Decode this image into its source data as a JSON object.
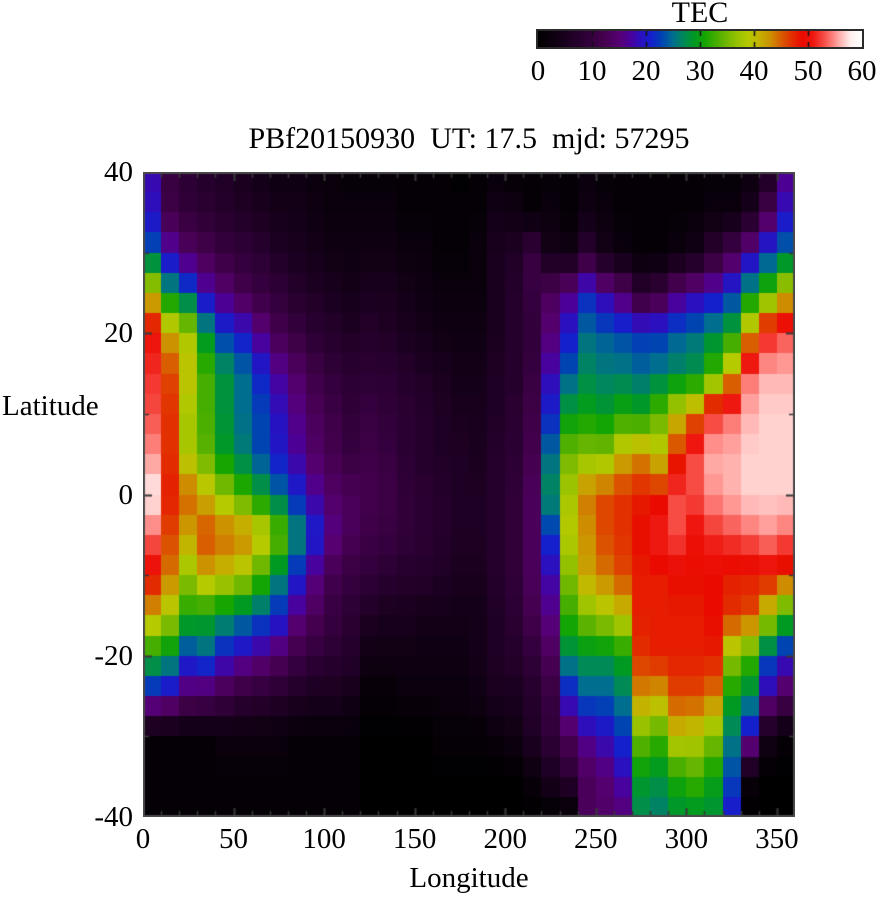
{
  "page": {
    "background": "#ffffff"
  },
  "colorbar": {
    "title": "TEC",
    "tick_labels": [
      "0",
      "10",
      "20",
      "30",
      "40",
      "50",
      "60"
    ],
    "min": 0,
    "max": 60
  },
  "plot": {
    "title": "PBf20150930  UT: 17.5  mjd: 57295",
    "xlabel": "Longitude",
    "ylabel": "Latitude",
    "x_tick_labels": [
      "0",
      "50",
      "100",
      "150",
      "200",
      "250",
      "300",
      "350"
    ],
    "y_tick_labels": [
      "40",
      "20",
      "0",
      "-20",
      "-40"
    ]
  },
  "chart_data": {
    "type": "heatmap",
    "title": "PBf20150930  UT: 17.5  mjd: 57295",
    "xlabel": "Longitude",
    "ylabel": "Latitude",
    "colorbar_label": "TEC",
    "xlim": [
      0,
      360
    ],
    "ylim": [
      -40,
      40
    ],
    "zlim": [
      0,
      60
    ],
    "x_major_ticks": [
      0,
      50,
      100,
      150,
      200,
      250,
      300,
      350
    ],
    "x_minor_step": 10,
    "y_major_ticks": [
      -40,
      -20,
      0,
      20,
      40
    ],
    "y_minor_step": 10,
    "colorbar_ticks": [
      0,
      10,
      20,
      30,
      40,
      50,
      60
    ],
    "colormap_stops": [
      [
        0,
        "#000000"
      ],
      [
        4,
        "#140018"
      ],
      [
        8,
        "#2a0032"
      ],
      [
        12,
        "#44004e"
      ],
      [
        15,
        "#560072"
      ],
      [
        17,
        "#4c0099"
      ],
      [
        19,
        "#2a10bf"
      ],
      [
        21,
        "#1420cc"
      ],
      [
        23,
        "#0044b2"
      ],
      [
        25,
        "#006e8e"
      ],
      [
        27,
        "#008a56"
      ],
      [
        29,
        "#009a22"
      ],
      [
        31,
        "#16a600"
      ],
      [
        34,
        "#5cb200"
      ],
      [
        37,
        "#98c200"
      ],
      [
        39,
        "#b6ca00"
      ],
      [
        41,
        "#c4b200"
      ],
      [
        43,
        "#cc9200"
      ],
      [
        45,
        "#d85e00"
      ],
      [
        47,
        "#e23000"
      ],
      [
        49,
        "#ea0a00"
      ],
      [
        51,
        "#ee1810"
      ],
      [
        53,
        "#f64c44"
      ],
      [
        55,
        "#ff8e8a"
      ],
      [
        56,
        "#ffb2ae"
      ],
      [
        57,
        "#ffd2d0"
      ],
      [
        58,
        "#fff0ee"
      ],
      [
        60,
        "#ffffff"
      ]
    ],
    "lon_centers": [
      5,
      15,
      25,
      35,
      45,
      55,
      65,
      75,
      85,
      95,
      105,
      115,
      125,
      135,
      145,
      155,
      165,
      175,
      185,
      195,
      205,
      215,
      225,
      235,
      245,
      255,
      265,
      275,
      285,
      295,
      305,
      315,
      325,
      335,
      345,
      355
    ],
    "lat_centers": [
      40,
      35,
      30,
      25,
      20,
      15,
      10,
      5,
      0,
      -5,
      -10,
      -15,
      -20,
      -25,
      -30,
      -35,
      -40
    ],
    "tec_values": [
      [
        18,
        10,
        8,
        7,
        6,
        5,
        4,
        3,
        3,
        2,
        2,
        1,
        1,
        1,
        1,
        1,
        1,
        0,
        1,
        1,
        1,
        1,
        1,
        1,
        2,
        1,
        1,
        1,
        1,
        1,
        1,
        1,
        1,
        2,
        5,
        16
      ],
      [
        19,
        11,
        9,
        8,
        7,
        6,
        5,
        4,
        4,
        3,
        2,
        2,
        2,
        2,
        1,
        1,
        1,
        1,
        1,
        4,
        3,
        1,
        2,
        1,
        3,
        2,
        1,
        1,
        1,
        1,
        1,
        2,
        2,
        5,
        12,
        19
      ],
      [
        24,
        18,
        14,
        12,
        10,
        9,
        8,
        6,
        5,
        4,
        3,
        3,
        3,
        3,
        2,
        2,
        1,
        1,
        2,
        5,
        6,
        10,
        4,
        3,
        8,
        4,
        2,
        1,
        1,
        2,
        4,
        8,
        12,
        17,
        22,
        25
      ],
      [
        40,
        28,
        24,
        18,
        15,
        12,
        10,
        9,
        7,
        6,
        5,
        4,
        5,
        5,
        4,
        3,
        2,
        2,
        2,
        5,
        7,
        10,
        13,
        16,
        21,
        17,
        14,
        8,
        10,
        15,
        17,
        19,
        22,
        28,
        33,
        40
      ],
      [
        50,
        42,
        38,
        28,
        22,
        20,
        16,
        12,
        10,
        8,
        7,
        6,
        7,
        6,
        5,
        4,
        3,
        3,
        3,
        5,
        7,
        9,
        15,
        20,
        25,
        24,
        23,
        22,
        22,
        24,
        25,
        27,
        30,
        42,
        51,
        53
      ],
      [
        52,
        46,
        40,
        33,
        28,
        25,
        21,
        17,
        14,
        11,
        9,
        8,
        8,
        8,
        7,
        6,
        5,
        4,
        4,
        6,
        7,
        10,
        18,
        24,
        27,
        26,
        26,
        25,
        26,
        27,
        28,
        33,
        42,
        54,
        56,
        56
      ],
      [
        53,
        47,
        38,
        33,
        28,
        25,
        23,
        19,
        16,
        13,
        11,
        9,
        10,
        9,
        8,
        7,
        6,
        5,
        5,
        6,
        8,
        11,
        21,
        29,
        30,
        29,
        31,
        30,
        34,
        40,
        44,
        52,
        54,
        56,
        57,
        57
      ],
      [
        55,
        47,
        38,
        34,
        29,
        26,
        23,
        20,
        17,
        14,
        12,
        10,
        11,
        10,
        8,
        7,
        6,
        6,
        5,
        7,
        8,
        12,
        25,
        35,
        36,
        36,
        41,
        43,
        40,
        47,
        53,
        56,
        56,
        57,
        57,
        57
      ],
      [
        58,
        48,
        45,
        41,
        37,
        33,
        29,
        25,
        21,
        17,
        14,
        13,
        12,
        11,
        9,
        8,
        7,
        6,
        6,
        7,
        9,
        13,
        27,
        38,
        44,
        46,
        47,
        48,
        48,
        53,
        53,
        55,
        56,
        57,
        57,
        57
      ],
      [
        54,
        46,
        42,
        46,
        45,
        44,
        41,
        35,
        27,
        21,
        16,
        13,
        11,
        10,
        9,
        8,
        7,
        6,
        6,
        7,
        9,
        13,
        22,
        39,
        43,
        46,
        47,
        49,
        52,
        53,
        50,
        52,
        53,
        54,
        55,
        54
      ],
      [
        49,
        44,
        37,
        42,
        40,
        38,
        33,
        27,
        21,
        16,
        12,
        10,
        9,
        8,
        7,
        7,
        6,
        5,
        5,
        7,
        9,
        13,
        18,
        36,
        42,
        44,
        46,
        48,
        48,
        49,
        49,
        49,
        48,
        48,
        49,
        47
      ],
      [
        42,
        38,
        31,
        30,
        28,
        26,
        24,
        21,
        16,
        13,
        10,
        8,
        6,
        5,
        5,
        4,
        4,
        4,
        4,
        6,
        8,
        12,
        16,
        32,
        36,
        38,
        40,
        48,
        48,
        48,
        48,
        49,
        47,
        46,
        39,
        32
      ],
      [
        30,
        28,
        22,
        24,
        20,
        18,
        16,
        14,
        11,
        9,
        8,
        7,
        3,
        3,
        3,
        3,
        3,
        3,
        4,
        6,
        7,
        9,
        13,
        27,
        28,
        28,
        30,
        47,
        48,
        48,
        48,
        48,
        37,
        33,
        24,
        20
      ],
      [
        20,
        18,
        14,
        13,
        11,
        9,
        8,
        7,
        6,
        5,
        5,
        4,
        1,
        1,
        2,
        2,
        2,
        2,
        3,
        5,
        5,
        7,
        10,
        20,
        24,
        24,
        26,
        43,
        42,
        46,
        46,
        44,
        30,
        27,
        17,
        13
      ],
      [
        1,
        1,
        1,
        1,
        2,
        2,
        2,
        2,
        1,
        1,
        1,
        1,
        0,
        0,
        0,
        0,
        1,
        1,
        1,
        2,
        3,
        6,
        9,
        13,
        17,
        19,
        22,
        35,
        33,
        40,
        39,
        36,
        26,
        19,
        4,
        1
      ],
      [
        1,
        1,
        1,
        1,
        1,
        1,
        1,
        1,
        1,
        1,
        1,
        1,
        0,
        0,
        0,
        0,
        0,
        0,
        0,
        0,
        0,
        2,
        5,
        8,
        13,
        15,
        18,
        29,
        28,
        31,
        33,
        30,
        23,
        2,
        0,
        0
      ],
      [
        1,
        1,
        1,
        1,
        1,
        1,
        1,
        1,
        1,
        1,
        1,
        1,
        0,
        0,
        0,
        0,
        0,
        0,
        0,
        0,
        0,
        0,
        0,
        0,
        13,
        14,
        15,
        27,
        26,
        28,
        28,
        28,
        20,
        0,
        0,
        0
      ]
    ]
  }
}
